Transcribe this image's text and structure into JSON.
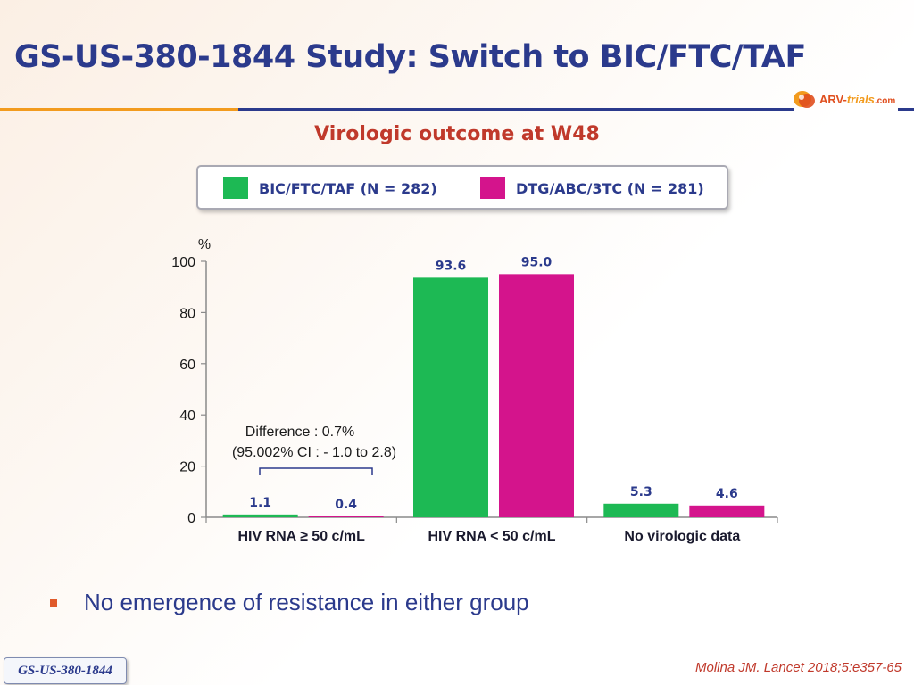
{
  "slide": {
    "title": "GS-US-380-1844 Study: Switch to BIC/FTC/TAF",
    "subtitle": "Virologic outcome at W48",
    "logo": {
      "arv": "ARV-",
      "trials": "trials",
      "com": ".com"
    },
    "bullet": "No emergence of resistance in either group",
    "study_tag": "GS-US-380-1844",
    "citation": "Molina JM. Lancet 2018;5:e357-65",
    "colors": {
      "title": "#2b3a8c",
      "accent": "#c0392b",
      "bic": "#1db954",
      "dtg": "#d4148c"
    }
  },
  "legend": [
    {
      "label": "BIC/FTC/TAF (N = 282)",
      "color": "#1db954"
    },
    {
      "label": "DTG/ABC/3TC (N = 281)",
      "color": "#d4148c"
    }
  ],
  "chart_data": {
    "type": "bar",
    "ylabel": "%",
    "ylim": [
      0,
      100
    ],
    "yticks": [
      0,
      20,
      40,
      60,
      80,
      100
    ],
    "categories": [
      "HIV RNA ≥ 50 c/mL",
      "HIV RNA < 50 c/mL",
      "No virologic data"
    ],
    "series": [
      {
        "name": "BIC/FTC/TAF (N = 282)",
        "color": "#1db954",
        "values": [
          1.1,
          93.6,
          5.3
        ],
        "labels": [
          "1.1",
          "93.6",
          "5.3"
        ]
      },
      {
        "name": "DTG/ABC/3TC (N = 281)",
        "color": "#d4148c",
        "values": [
          0.4,
          95.0,
          4.6
        ],
        "labels": [
          "0.4",
          "95.0",
          "4.6"
        ]
      }
    ],
    "annotation": {
      "line1": "Difference : 0.7%",
      "line2": "(95.002% CI : - 1.0 to 2.8)",
      "category": 0
    },
    "grid": false,
    "legend_position": "top"
  }
}
